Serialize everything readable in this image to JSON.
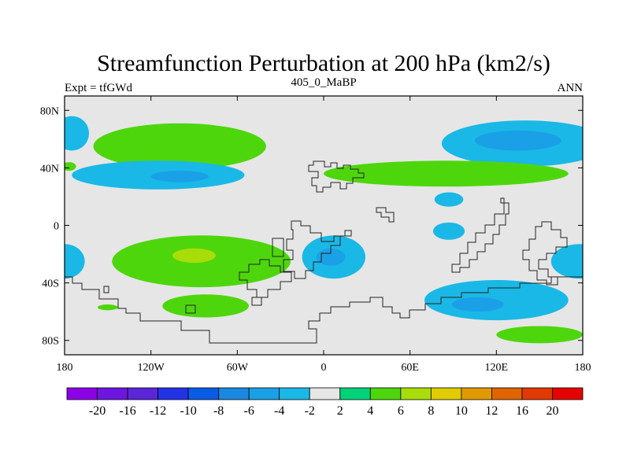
{
  "chart_data": {
    "type": "heatmap",
    "title": "Streamfunction Perturbation at 200 hPa (km2/s)",
    "left_label": "Expt = tfGWd",
    "center_label": "405_0_MaBP",
    "right_label": "ANN",
    "xlim": [
      -180,
      180
    ],
    "ylim": [
      -90,
      90
    ],
    "x_ticks": [
      {
        "value": -180,
        "label": "180"
      },
      {
        "value": -120,
        "label": "120W"
      },
      {
        "value": -60,
        "label": "60W"
      },
      {
        "value": 0,
        "label": "0"
      },
      {
        "value": 60,
        "label": "60E"
      },
      {
        "value": 120,
        "label": "120E"
      },
      {
        "value": 180,
        "label": "180"
      }
    ],
    "y_ticks": [
      {
        "value": 80,
        "label": "80N"
      },
      {
        "value": 40,
        "label": "40N"
      },
      {
        "value": 0,
        "label": "0"
      },
      {
        "value": -40,
        "label": "40S"
      },
      {
        "value": -80,
        "label": "80S"
      }
    ],
    "background_color": "#e6e6e6",
    "colorbar": {
      "colors": [
        "#8b00e6",
        "#6e16e0",
        "#5a26d8",
        "#2233e6",
        "#0a5ce6",
        "#1a88e0",
        "#1aa0e6",
        "#1ab8e6",
        "#e6e6e6",
        "#00d27a",
        "#4ed60c",
        "#a8dd0a",
        "#e0cc00",
        "#e09a00",
        "#e06400",
        "#e03a00",
        "#e60000"
      ],
      "labels": [
        "-20",
        "-16",
        "-12",
        "-10",
        "-8",
        "-6",
        "-4",
        "-2",
        "2",
        "4",
        "6",
        "8",
        "10",
        "12",
        "16",
        "20"
      ]
    },
    "features": [
      {
        "name": "nh-west-pos",
        "level": 4,
        "lon": -100,
        "lat": 55,
        "rlon": 60,
        "rlat": 16
      },
      {
        "name": "nh-west-pos-core",
        "level": 5,
        "lon": -72,
        "lat": 55,
        "rlon": 28,
        "rlat": 9
      },
      {
        "name": "nh-west-neg",
        "level": -4,
        "lon": -115,
        "lat": 35,
        "rlon": 60,
        "rlat": 10
      },
      {
        "name": "nh-west-neg-core",
        "level": -6,
        "lon": -100,
        "lat": 34,
        "rlon": 20,
        "rlat": 4
      },
      {
        "name": "nh-dateline-neg",
        "level": -4,
        "lon": -175,
        "lat": 64,
        "rlon": 12,
        "rlat": 12
      },
      {
        "name": "nh-dateline-pos",
        "level": 4,
        "lon": -177,
        "lat": 41,
        "rlon": 5,
        "rlat": 3
      },
      {
        "name": "nh-east-neg",
        "level": -4,
        "lon": 140,
        "lat": 57,
        "rlon": 58,
        "rlat": 16
      },
      {
        "name": "nh-east-neg-core",
        "level": -6,
        "lon": 135,
        "lat": 59,
        "rlon": 30,
        "rlat": 7
      },
      {
        "name": "nh-east-pos",
        "level": 4,
        "lon": 85,
        "lat": 36,
        "rlon": 85,
        "rlat": 9
      },
      {
        "name": "nh-east-pos-core",
        "level": 5,
        "lon": 75,
        "lat": 36,
        "rlon": 22,
        "rlat": 5
      },
      {
        "name": "eq-neg-a",
        "level": -4,
        "lon": 87,
        "lat": 18,
        "rlon": 10,
        "rlat": 5
      },
      {
        "name": "eq-neg-b",
        "level": -4,
        "lon": 87,
        "lat": -4,
        "rlon": 11,
        "rlat": 6
      },
      {
        "name": "sh-pos-band",
        "level": 4,
        "lon": -85,
        "lat": -25,
        "rlon": 62,
        "rlat": 18
      },
      {
        "name": "sh-pos-band-mid",
        "level": 5,
        "lon": -85,
        "lat": -23,
        "rlon": 36,
        "rlat": 9
      },
      {
        "name": "sh-pos-band-core",
        "level": 6,
        "lon": -90,
        "lat": -21,
        "rlon": 15,
        "rlat": 5
      },
      {
        "name": "sh-west-neg",
        "level": -4,
        "lon": -180,
        "lat": -25,
        "rlon": 14,
        "rlat": 12
      },
      {
        "name": "sh-south-pos",
        "level": 4,
        "lon": -82,
        "lat": -56,
        "rlon": 30,
        "rlat": 8
      },
      {
        "name": "sh-small-pos",
        "level": 4,
        "lon": -150,
        "lat": -57,
        "rlon": 7,
        "rlat": 2
      },
      {
        "name": "sh-central-neg",
        "level": -4,
        "lon": 7,
        "lat": -22,
        "rlon": 22,
        "rlat": 15
      },
      {
        "name": "sh-central-neg-core",
        "level": -6,
        "lon": 5,
        "lat": -22,
        "rlon": 10,
        "rlat": 6
      },
      {
        "name": "sh-east-neg",
        "level": -4,
        "lon": 120,
        "lat": -52,
        "rlon": 50,
        "rlat": 14
      },
      {
        "name": "sh-east-neg-core",
        "level": -6,
        "lon": 107,
        "lat": -55,
        "rlon": 18,
        "rlat": 5
      },
      {
        "name": "sh-far-east-neg",
        "level": -4,
        "lon": 178,
        "lat": -25,
        "rlon": 20,
        "rlat": 12
      },
      {
        "name": "sh-far-east-pos",
        "level": 4,
        "lon": 150,
        "lat": -76,
        "rlon": 30,
        "rlat": 6
      }
    ]
  }
}
